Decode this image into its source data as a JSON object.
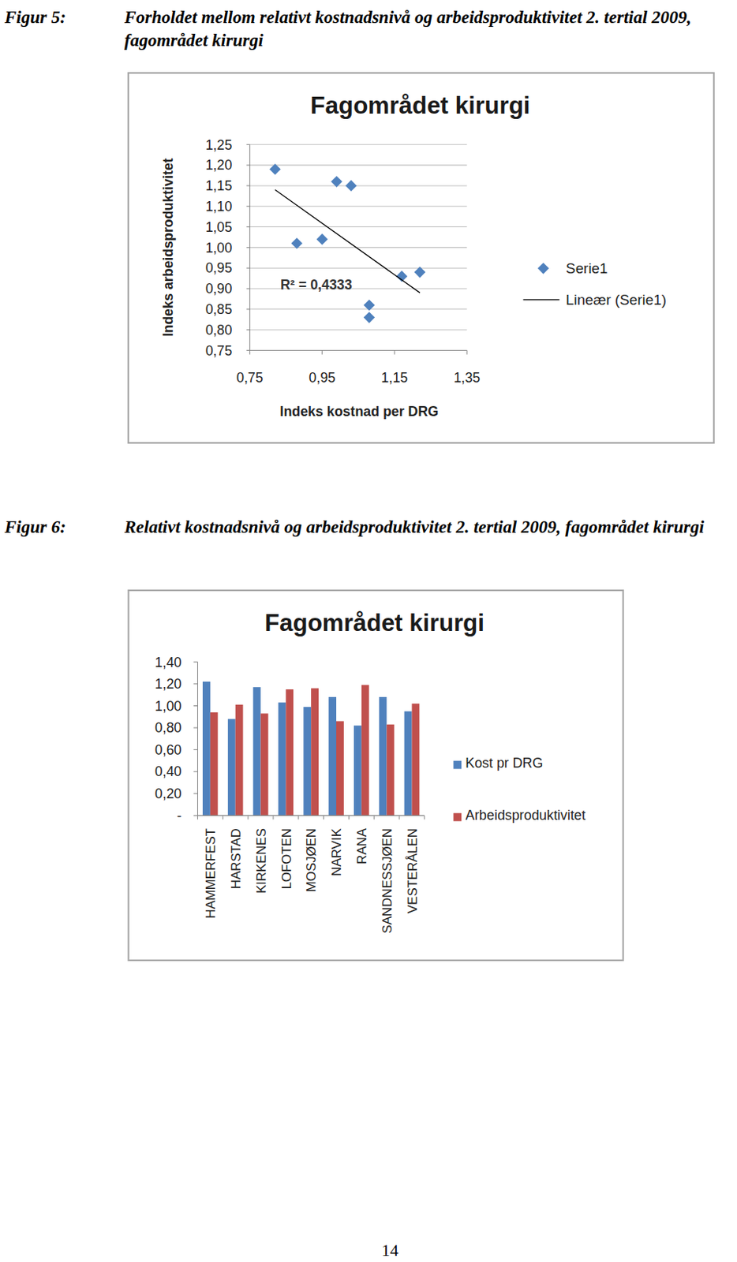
{
  "figures": [
    {
      "label": "Figur 5:",
      "caption": "Forholdet mellom relativt kostnadsnivå og arbeidsproduktivitet 2. tertial 2009, fagområdet kirurgi"
    },
    {
      "label": "Figur 6:",
      "caption": "Relativt kostnadsnivå og arbeidsproduktivitet 2. tertial 2009, fagområdet kirurgi"
    }
  ],
  "chart_data": [
    {
      "type": "scatter",
      "title": "Fagområdet kirurgi",
      "x_label": "Indeks kostnad per DRG",
      "y_label": "Indeks arbeidsproduktivitet",
      "xlim": [
        0.75,
        1.35
      ],
      "xticks": [
        {
          "value": 0.75,
          "label": "0,75"
        },
        {
          "value": 0.95,
          "label": "0,95"
        },
        {
          "value": 1.15,
          "label": "1,15"
        },
        {
          "value": 1.35,
          "label": "1,35"
        }
      ],
      "ylim": [
        0.75,
        1.25
      ],
      "yticks": [
        {
          "value": 0.75,
          "label": "0,75"
        },
        {
          "value": 0.8,
          "label": "0,80"
        },
        {
          "value": 0.85,
          "label": "0,85"
        },
        {
          "value": 0.9,
          "label": "0,90"
        },
        {
          "value": 0.95,
          "label": "0,95"
        },
        {
          "value": 1.0,
          "label": "1,00"
        },
        {
          "value": 1.05,
          "label": "1,05"
        },
        {
          "value": 1.1,
          "label": "1,10"
        },
        {
          "value": 1.15,
          "label": "1,15"
        },
        {
          "value": 1.2,
          "label": "1,20"
        },
        {
          "value": 1.25,
          "label": "1,25"
        }
      ],
      "grid": true,
      "legend": "right",
      "annotations": [
        "R² = 0,4333"
      ],
      "series": [
        {
          "name": "Serie1",
          "type": "scatter",
          "marker": "diamond",
          "color": "#4f81bd",
          "x": [
            1.22,
            0.88,
            1.17,
            1.03,
            0.99,
            1.08,
            0.82,
            1.08,
            0.95
          ],
          "values": [
            0.94,
            1.01,
            0.93,
            1.15,
            1.16,
            0.86,
            1.19,
            0.83,
            1.02
          ]
        },
        {
          "name": "Lineær (Serie1)",
          "type": "line",
          "line_style": "solid",
          "color": "#000000",
          "x": [
            0.82,
            1.22
          ],
          "values": [
            1.14,
            0.89
          ]
        }
      ]
    },
    {
      "type": "bar",
      "title": "Fagområdet kirurgi",
      "categories": [
        "HAMMERFEST",
        "HARSTAD",
        "KIRKENES",
        "LOFOTEN",
        "MOSJØEN",
        "NARVIK",
        "RANA",
        "SANDNESSJØEN",
        "VESTERÅLEN"
      ],
      "ylim": [
        0,
        1.4
      ],
      "yticks": [
        {
          "value": 0,
          "label": "-"
        },
        {
          "value": 0.2,
          "label": "0,20"
        },
        {
          "value": 0.4,
          "label": "0,40"
        },
        {
          "value": 0.6,
          "label": "0,60"
        },
        {
          "value": 0.8,
          "label": "0,80"
        },
        {
          "value": 1.0,
          "label": "1,00"
        },
        {
          "value": 1.2,
          "label": "1,20"
        },
        {
          "value": 1.4,
          "label": "1,40"
        }
      ],
      "grid": false,
      "legend": "right",
      "series": [
        {
          "name": "Kost pr DRG",
          "color": "#4f81bd",
          "values": [
            1.22,
            0.88,
            1.17,
            1.03,
            0.99,
            1.08,
            0.82,
            1.08,
            0.95
          ]
        },
        {
          "name": "Arbeidsproduktivitet",
          "color": "#c0504d",
          "values": [
            0.94,
            1.01,
            0.93,
            1.15,
            1.16,
            0.86,
            1.19,
            0.83,
            1.02
          ]
        }
      ]
    }
  ],
  "page_number": 14
}
